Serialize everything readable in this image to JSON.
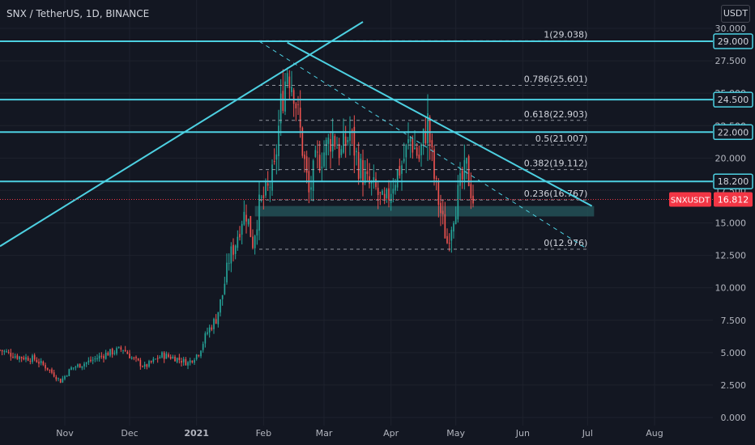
{
  "header": {
    "symbol": "SNX / TetherUS, 1D, BINANCE",
    "currency": "USDT"
  },
  "colors": {
    "background": "#131722",
    "cyan": "#4dd0e1",
    "up": "#26a69a",
    "down": "#ef5350",
    "axis_text": "#b2b5be",
    "price_tag": "#f23645",
    "zone": "#26585e"
  },
  "chart_data": {
    "type": "candlestick",
    "title": "SNX / TetherUS, 1D, BINANCE",
    "ylim": [
      0,
      30
    ],
    "y_ticks": [
      "0.000",
      "2.500",
      "5.000",
      "7.500",
      "10.000",
      "12.500",
      "15.000",
      "17.500",
      "20.000",
      "22.500",
      "25.000",
      "27.500",
      "30.000"
    ],
    "x_ticks": [
      {
        "label": "Nov",
        "date": "2020-11-01"
      },
      {
        "label": "Dec",
        "date": "2020-12-01"
      },
      {
        "label": "2021",
        "date": "2021-01-01"
      },
      {
        "label": "Feb",
        "date": "2021-02-01"
      },
      {
        "label": "Mar",
        "date": "2021-03-01"
      },
      {
        "label": "Apr",
        "date": "2021-04-01"
      },
      {
        "label": "May",
        "date": "2021-05-01"
      },
      {
        "label": "Jun",
        "date": "2021-06-01"
      },
      {
        "label": "Jul",
        "date": "2021-07-01"
      },
      {
        "label": "Aug",
        "date": "2021-08-01"
      }
    ],
    "x_range": [
      "2020-10-02",
      "2021-08-28"
    ],
    "horizontal_levels": [
      {
        "value": 29.0,
        "label": "29.000"
      },
      {
        "value": 24.5,
        "label": "24.500"
      },
      {
        "value": 22.0,
        "label": "22.000"
      },
      {
        "value": 18.2,
        "label": "18.200"
      }
    ],
    "fib_levels": [
      {
        "label": "1(29.038)",
        "value": 29.038
      },
      {
        "label": "0.786(25.601)",
        "value": 25.601
      },
      {
        "label": "0.618(22.903)",
        "value": 22.903
      },
      {
        "label": "0.5(21.007)",
        "value": 21.007
      },
      {
        "label": "0.382(19.112)",
        "value": 19.112
      },
      {
        "label": "0.236(16.767)",
        "value": 16.767
      },
      {
        "label": "0(12.976)",
        "value": 12.976
      }
    ],
    "fib_range": [
      "2021-01-30",
      "2021-07-01"
    ],
    "current_price": {
      "label": "SNXUSDT",
      "value": 16.812,
      "text": "16.812"
    },
    "support_zone": {
      "from": "2021-01-28",
      "to": "2021-07-04",
      "low": 15.5,
      "high": 16.3
    },
    "trendlines": [
      {
        "name": "ascending",
        "points": [
          [
            "2020-10-02",
            13.2
          ],
          [
            "2021-02-12",
            28.9
          ]
        ],
        "extend_to": [
          "2021-03-19",
          30.5
        ]
      },
      {
        "name": "descending",
        "points": [
          [
            "2021-02-12",
            28.9
          ],
          [
            "2021-07-03",
            16.3
          ]
        ]
      },
      {
        "name": "fib-diagonal",
        "dashed": true,
        "points": [
          [
            "2021-01-30",
            29.0
          ],
          [
            "2021-07-01",
            12.976
          ]
        ]
      }
    ],
    "price_path": [
      [
        "2020-10-02",
        5.2
      ],
      [
        "2020-10-10",
        4.7
      ],
      [
        "2020-10-18",
        4.5
      ],
      [
        "2020-10-24",
        3.8
      ],
      [
        "2020-10-30",
        2.8
      ],
      [
        "2020-11-04",
        3.8
      ],
      [
        "2020-11-12",
        4.3
      ],
      [
        "2020-11-20",
        4.9
      ],
      [
        "2020-11-28",
        5.3
      ],
      [
        "2020-12-02",
        4.6
      ],
      [
        "2020-12-08",
        3.9
      ],
      [
        "2020-12-16",
        4.8
      ],
      [
        "2020-12-22",
        4.6
      ],
      [
        "2020-12-28",
        4.2
      ],
      [
        "2021-01-02",
        5.0
      ],
      [
        "2021-01-06",
        6.6
      ],
      [
        "2021-01-10",
        7.6
      ],
      [
        "2021-01-13",
        9.5
      ],
      [
        "2021-01-16",
        12.2
      ],
      [
        "2021-01-19",
        13.5
      ],
      [
        "2021-01-22",
        15.4
      ],
      [
        "2021-01-24",
        15.8
      ],
      [
        "2021-01-27",
        13.5
      ],
      [
        "2021-01-30",
        16.3
      ],
      [
        "2021-02-03",
        17.5
      ],
      [
        "2021-02-06",
        19.0
      ],
      [
        "2021-02-09",
        24.0
      ],
      [
        "2021-02-12",
        27.0
      ],
      [
        "2021-02-15",
        25.5
      ],
      [
        "2021-02-18",
        22.0
      ],
      [
        "2021-02-22",
        17.2
      ],
      [
        "2021-02-25",
        19.5
      ],
      [
        "2021-03-01",
        20.5
      ],
      [
        "2021-03-05",
        21.8
      ],
      [
        "2021-03-09",
        20.3
      ],
      [
        "2021-03-13",
        22.0
      ],
      [
        "2021-03-17",
        19.5
      ],
      [
        "2021-03-21",
        18.0
      ],
      [
        "2021-03-25",
        17.5
      ],
      [
        "2021-03-29",
        16.2
      ],
      [
        "2021-04-02",
        18.2
      ],
      [
        "2021-04-06",
        19.5
      ],
      [
        "2021-04-10",
        21.5
      ],
      [
        "2021-04-14",
        20.0
      ],
      [
        "2021-04-18",
        22.8
      ],
      [
        "2021-04-21",
        18.5
      ],
      [
        "2021-04-24",
        15.8
      ],
      [
        "2021-04-27",
        13.5
      ],
      [
        "2021-04-30",
        15.8
      ],
      [
        "2021-05-03",
        17.8
      ],
      [
        "2021-05-06",
        19.2
      ],
      [
        "2021-05-09",
        16.8
      ]
    ]
  }
}
